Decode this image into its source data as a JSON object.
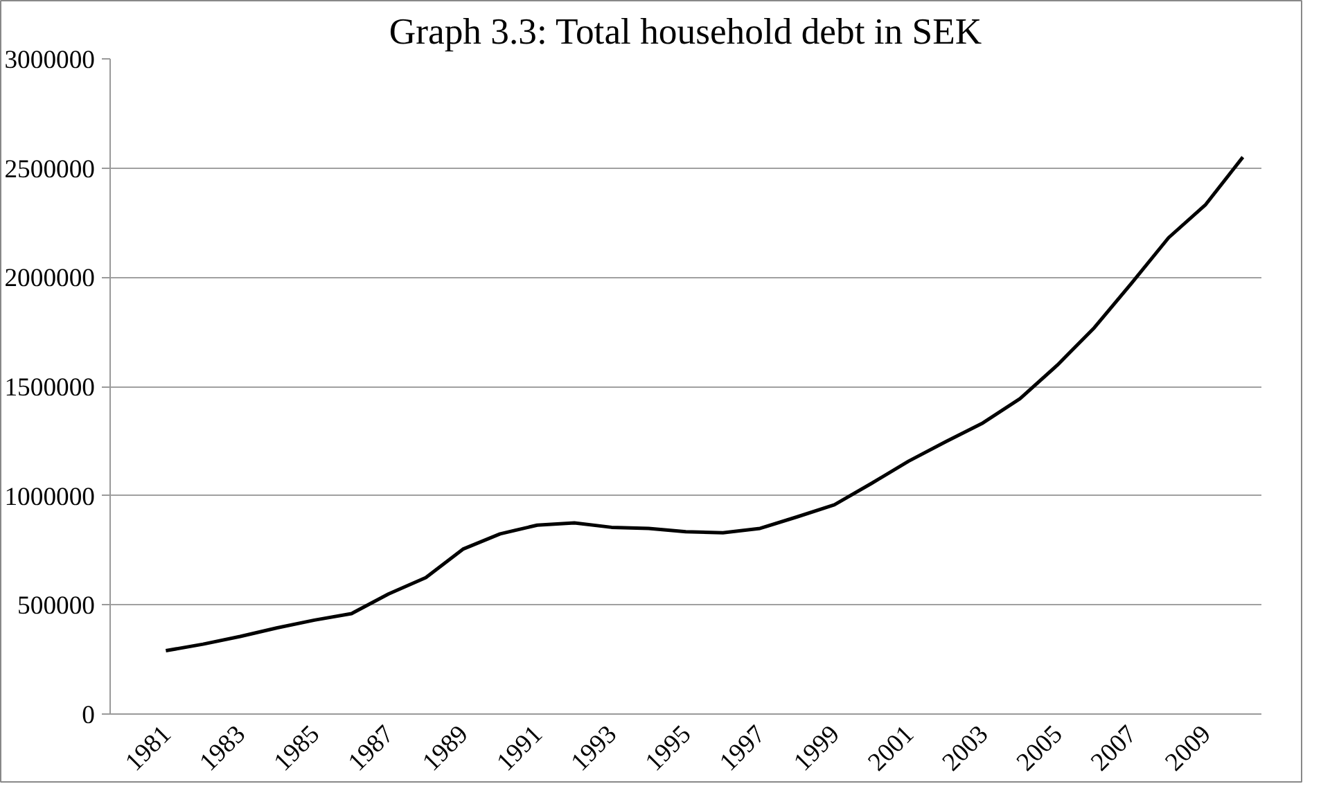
{
  "chart_data": {
    "type": "line",
    "title": "Graph 3.3: Total household debt in SEK",
    "categories": [
      null,
      "1981",
      null,
      "1983",
      null,
      "1985",
      null,
      "1987",
      null,
      "1989",
      null,
      "1991",
      null,
      "1993",
      null,
      "1995",
      null,
      "1997",
      null,
      "1999",
      null,
      "2001",
      null,
      "2003",
      null,
      "2005",
      null,
      "2007",
      null,
      "2009",
      null
    ],
    "series": [
      {
        "color": "#000000",
        "values": [
          null,
          290000,
          320000,
          355000,
          395000,
          430000,
          460000,
          550000,
          625000,
          755000,
          825000,
          865000,
          875000,
          855000,
          850000,
          835000,
          830000,
          850000,
          903000,
          958000,
          1056000,
          1158000,
          1247000,
          1333000,
          1444000,
          1597000,
          1769000,
          1972000,
          2181000,
          2333000,
          2550000
        ]
      }
    ],
    "ylim": [
      0,
      3000000
    ],
    "yticks": [
      0,
      500000,
      1000000,
      1500000,
      2000000,
      2500000,
      3000000
    ],
    "grid": "y",
    "marker": "none",
    "line_style": "solid"
  }
}
